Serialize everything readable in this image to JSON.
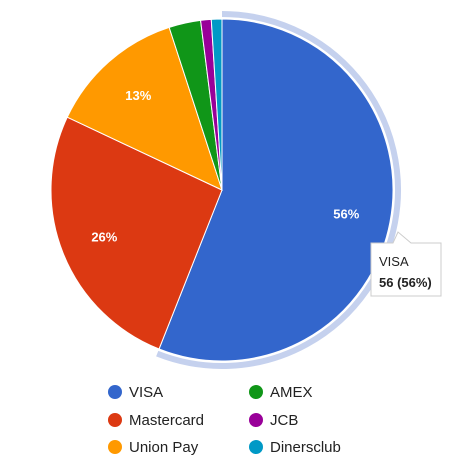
{
  "chart_data": {
    "type": "pie",
    "slices": [
      {
        "label": "VISA",
        "value": 56,
        "percent_label": "56%",
        "color": "#3366cc"
      },
      {
        "label": "Mastercard",
        "value": 26,
        "percent_label": "26%",
        "color": "#dc3912"
      },
      {
        "label": "Union Pay",
        "value": 13,
        "percent_label": "13%",
        "color": "#ff9900"
      },
      {
        "label": "AMEX",
        "value": 3,
        "percent_label": "",
        "color": "#109618"
      },
      {
        "label": "JCB",
        "value": 1,
        "percent_label": "",
        "color": "#990099"
      },
      {
        "label": "Dinersclub",
        "value": 1,
        "percent_label": "",
        "color": "#0099c6"
      }
    ],
    "highlighted_slice": "VISA",
    "legend_position": "bottom"
  },
  "tooltip": {
    "title": "VISA",
    "value": "56 (56%)"
  }
}
